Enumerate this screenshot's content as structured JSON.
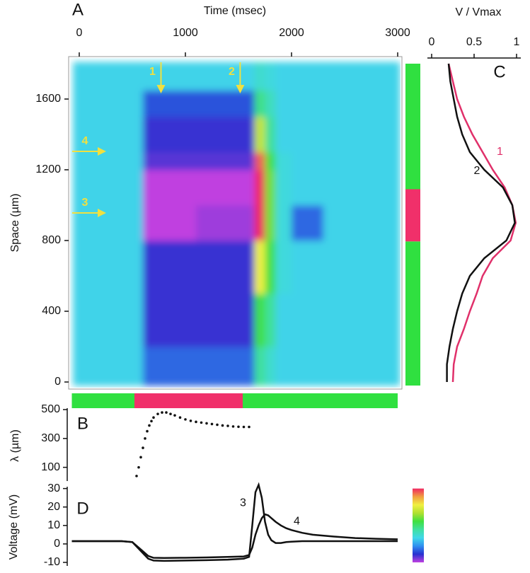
{
  "chart_data": [
    {
      "type": "heatmap",
      "panel": "A",
      "title": "Time (msec)",
      "ylabel": "Space (µm)",
      "xlim": [
        -100,
        3040
      ],
      "xticks": [
        0,
        1000,
        2000,
        3000
      ],
      "ylim": [
        -40,
        1840
      ],
      "yticks": [
        0,
        400,
        800,
        1200,
        1600
      ],
      "xbins": [
        -60,
        600,
        1100,
        1650,
        1750,
        1850,
        2000,
        2300,
        3020
      ],
      "ybins": [
        -20,
        200,
        500,
        800,
        1000,
        1200,
        1300,
        1500,
        1650,
        1810
      ],
      "values": [
        [
          3,
          -3,
          -3,
          8,
          5,
          3,
          3,
          3
        ],
        [
          3,
          -6,
          -6,
          12,
          8,
          3,
          3,
          3
        ],
        [
          3,
          -6,
          -6,
          21,
          12,
          4,
          3,
          3
        ],
        [
          3,
          -10,
          -9,
          30,
          14,
          4,
          -3,
          3
        ],
        [
          3,
          -10,
          -10,
          30,
          14,
          4,
          3,
          3
        ],
        [
          3,
          -7,
          -7,
          28,
          12,
          4,
          3,
          3
        ],
        [
          3,
          -6,
          -6,
          18,
          8,
          3,
          3,
          3
        ],
        [
          3,
          -4,
          -4,
          9,
          6,
          3,
          3,
          3
        ],
        [
          3,
          3,
          3,
          5,
          4,
          3,
          3,
          3
        ]
      ],
      "clim": [
        -10,
        30
      ],
      "colormap": [
        "#c040e0",
        "#2830d0",
        "#3090f0",
        "#40d8e8",
        "#40e0a0",
        "#40e040",
        "#b0e030",
        "#f0f040",
        "#f0a040",
        "#f02860"
      ],
      "annotations": [
        {
          "text": "1",
          "x": 770
        },
        {
          "text": "2",
          "x": 1516
        },
        {
          "text": "4",
          "y": 1304
        },
        {
          "text": "3",
          "y": 956
        }
      ],
      "annotation_color": "#f0e040",
      "stimulus_time": [
        -70,
        520,
        1540,
        3000
      ],
      "stimulus_space": [
        -20,
        795,
        1090,
        1800
      ],
      "stimulus_colors": [
        "#30e040",
        "#f0306a",
        "#30e040"
      ]
    },
    {
      "type": "scatter",
      "panel": "B",
      "ylabel": "λ (µm)",
      "color": "#111111",
      "xlim": [
        -100,
        3040
      ],
      "ylim": [
        10,
        500
      ],
      "yticks": [
        100,
        300,
        500
      ],
      "x": [
        540,
        560,
        580,
        600,
        620,
        640,
        660,
        680,
        700,
        740,
        780,
        820,
        860,
        900,
        950,
        1000,
        1050,
        1100,
        1150,
        1200,
        1250,
        1300,
        1350,
        1400,
        1450,
        1500,
        1550,
        1600
      ],
      "values": [
        40,
        100,
        170,
        235,
        300,
        350,
        390,
        420,
        445,
        470,
        480,
        480,
        470,
        460,
        445,
        432,
        422,
        415,
        410,
        405,
        400,
        395,
        390,
        387,
        383,
        381,
        380,
        380
      ]
    },
    {
      "type": "line",
      "panel": "C",
      "title": "V / Vmax",
      "xlim": [
        0,
        1
      ],
      "xticks": [
        0,
        0.5,
        1
      ],
      "ylim": [
        -40,
        1840
      ],
      "y": [
        1800,
        1700,
        1600,
        1500,
        1400,
        1300,
        1200,
        1100,
        1000,
        900,
        800,
        700,
        600,
        500,
        400,
        300,
        200,
        100,
        0
      ],
      "series": [
        {
          "name": "1",
          "color": "#e0306a",
          "values": [
            0.2,
            0.25,
            0.3,
            0.38,
            0.48,
            0.6,
            0.72,
            0.86,
            0.95,
            0.99,
            0.93,
            0.72,
            0.6,
            0.53,
            0.45,
            0.38,
            0.3,
            0.26,
            0.25
          ]
        },
        {
          "name": "2",
          "color": "#111111",
          "values": [
            0.2,
            0.22,
            0.26,
            0.3,
            0.36,
            0.45,
            0.62,
            0.84,
            0.95,
            0.98,
            0.88,
            0.62,
            0.45,
            0.36,
            0.3,
            0.25,
            0.21,
            0.18,
            0.18
          ]
        }
      ]
    },
    {
      "type": "line",
      "panel": "D",
      "ylabel": "Voltage (mV)",
      "xlim": [
        -100,
        3040
      ],
      "ylim": [
        -10,
        31
      ],
      "yticks": [
        30,
        20,
        10,
        0,
        -10
      ],
      "x": [
        -70,
        400,
        500,
        550,
        600,
        650,
        700,
        800,
        1000,
        1200,
        1400,
        1550,
        1600,
        1630,
        1660,
        1690,
        1720,
        1750,
        1780,
        1810,
        1850,
        1900,
        1950,
        2000,
        2100,
        2200,
        2400,
        2600,
        2800,
        3000
      ],
      "series": [
        {
          "name": "3",
          "color": "#111111",
          "values": [
            1.5,
            1.5,
            1,
            -2,
            -5,
            -8,
            -9,
            -9.2,
            -9,
            -8.8,
            -8.5,
            -8,
            -7,
            10,
            28,
            32,
            25,
            12,
            5,
            2,
            0.5,
            0.5,
            1,
            1.2,
            1.5,
            1.5,
            1.5,
            1.5,
            1.5,
            1.5
          ]
        },
        {
          "name": "4",
          "color": "#111111",
          "values": [
            1.5,
            1.5,
            1,
            -1.5,
            -4,
            -6.5,
            -7.5,
            -7.6,
            -7.5,
            -7.3,
            -7,
            -6.8,
            -6,
            -2,
            5,
            10,
            14,
            16,
            15.5,
            14,
            12,
            10,
            8.5,
            7.5,
            6,
            5,
            4,
            3.2,
            2.8,
            2.5
          ]
        }
      ]
    }
  ]
}
